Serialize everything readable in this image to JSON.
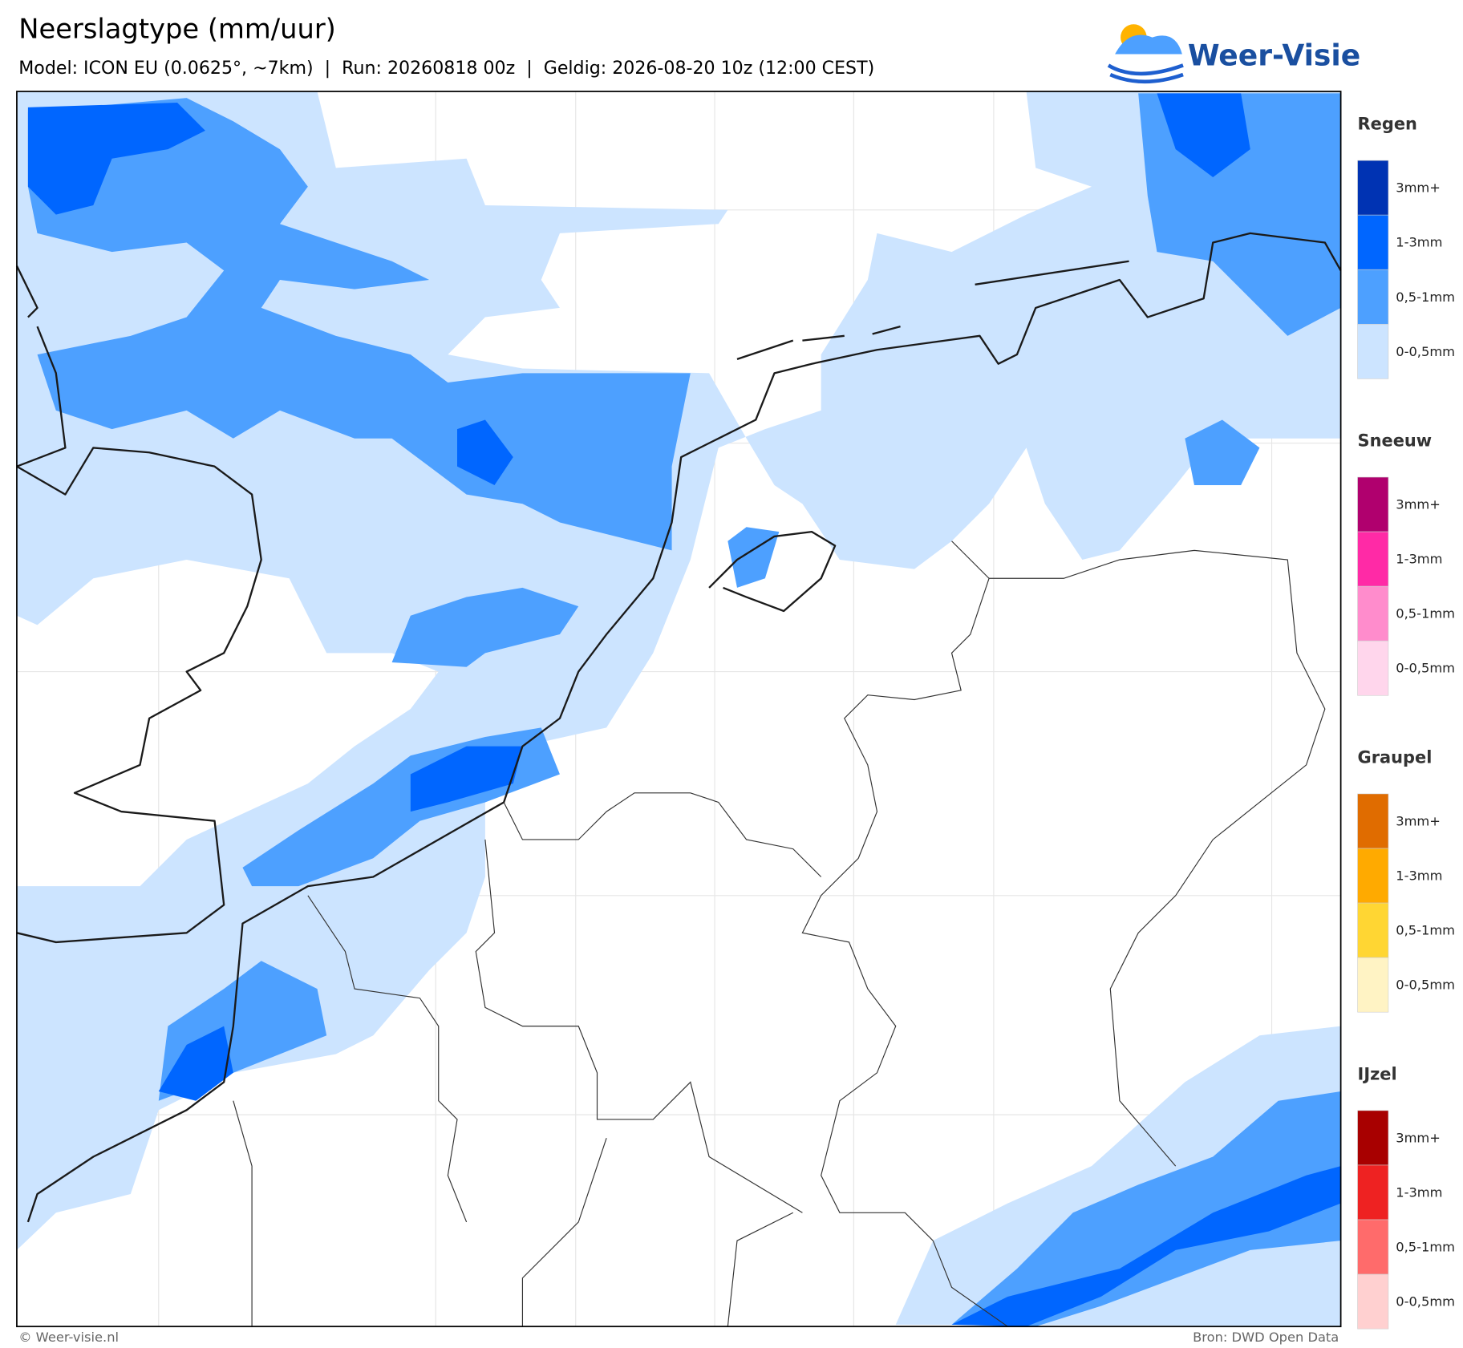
{
  "header": {
    "title": "Neerslagtype (mm/uur)",
    "subtitle": "Model: ICON EU (0.0625°, ~7km)  |  Run: 20260818 00z  |  Geldig: 2026-08-20 10z (12:00 CEST)",
    "logo": "Weer-Visie"
  },
  "legend": [
    {
      "title": "Regen",
      "items": [
        {
          "label": "3mm+",
          "color": "#0033b3"
        },
        {
          "label": "1-3mm",
          "color": "#0066ff"
        },
        {
          "label": "0,5-1mm",
          "color": "#4da0ff"
        },
        {
          "label": "0-0,5mm",
          "color": "#cce4ff"
        }
      ]
    },
    {
      "title": "Sneeuw",
      "items": [
        {
          "label": "3mm+",
          "color": "#b0006e"
        },
        {
          "label": "1-3mm",
          "color": "#ff2aa6"
        },
        {
          "label": "0,5-1mm",
          "color": "#ff8ccc"
        },
        {
          "label": "0-0,5mm",
          "color": "#ffd6ec"
        }
      ]
    },
    {
      "title": "Graupel",
      "items": [
        {
          "label": "3mm+",
          "color": "#e06c00"
        },
        {
          "label": "1-3mm",
          "color": "#ffaa00"
        },
        {
          "label": "0,5-1mm",
          "color": "#ffd633"
        },
        {
          "label": "0-0,5mm",
          "color": "#fff3c4"
        }
      ]
    },
    {
      "title": "IJzel",
      "items": [
        {
          "label": "3mm+",
          "color": "#a80000"
        },
        {
          "label": "1-3mm",
          "color": "#ee2222"
        },
        {
          "label": "0,5-1mm",
          "color": "#ff6b6b"
        },
        {
          "label": "0-0,5mm",
          "color": "#ffd0d0"
        }
      ]
    }
  ],
  "footer": {
    "left": "© Weer-visie.nl",
    "right": "Bron: DWD Open Data"
  }
}
